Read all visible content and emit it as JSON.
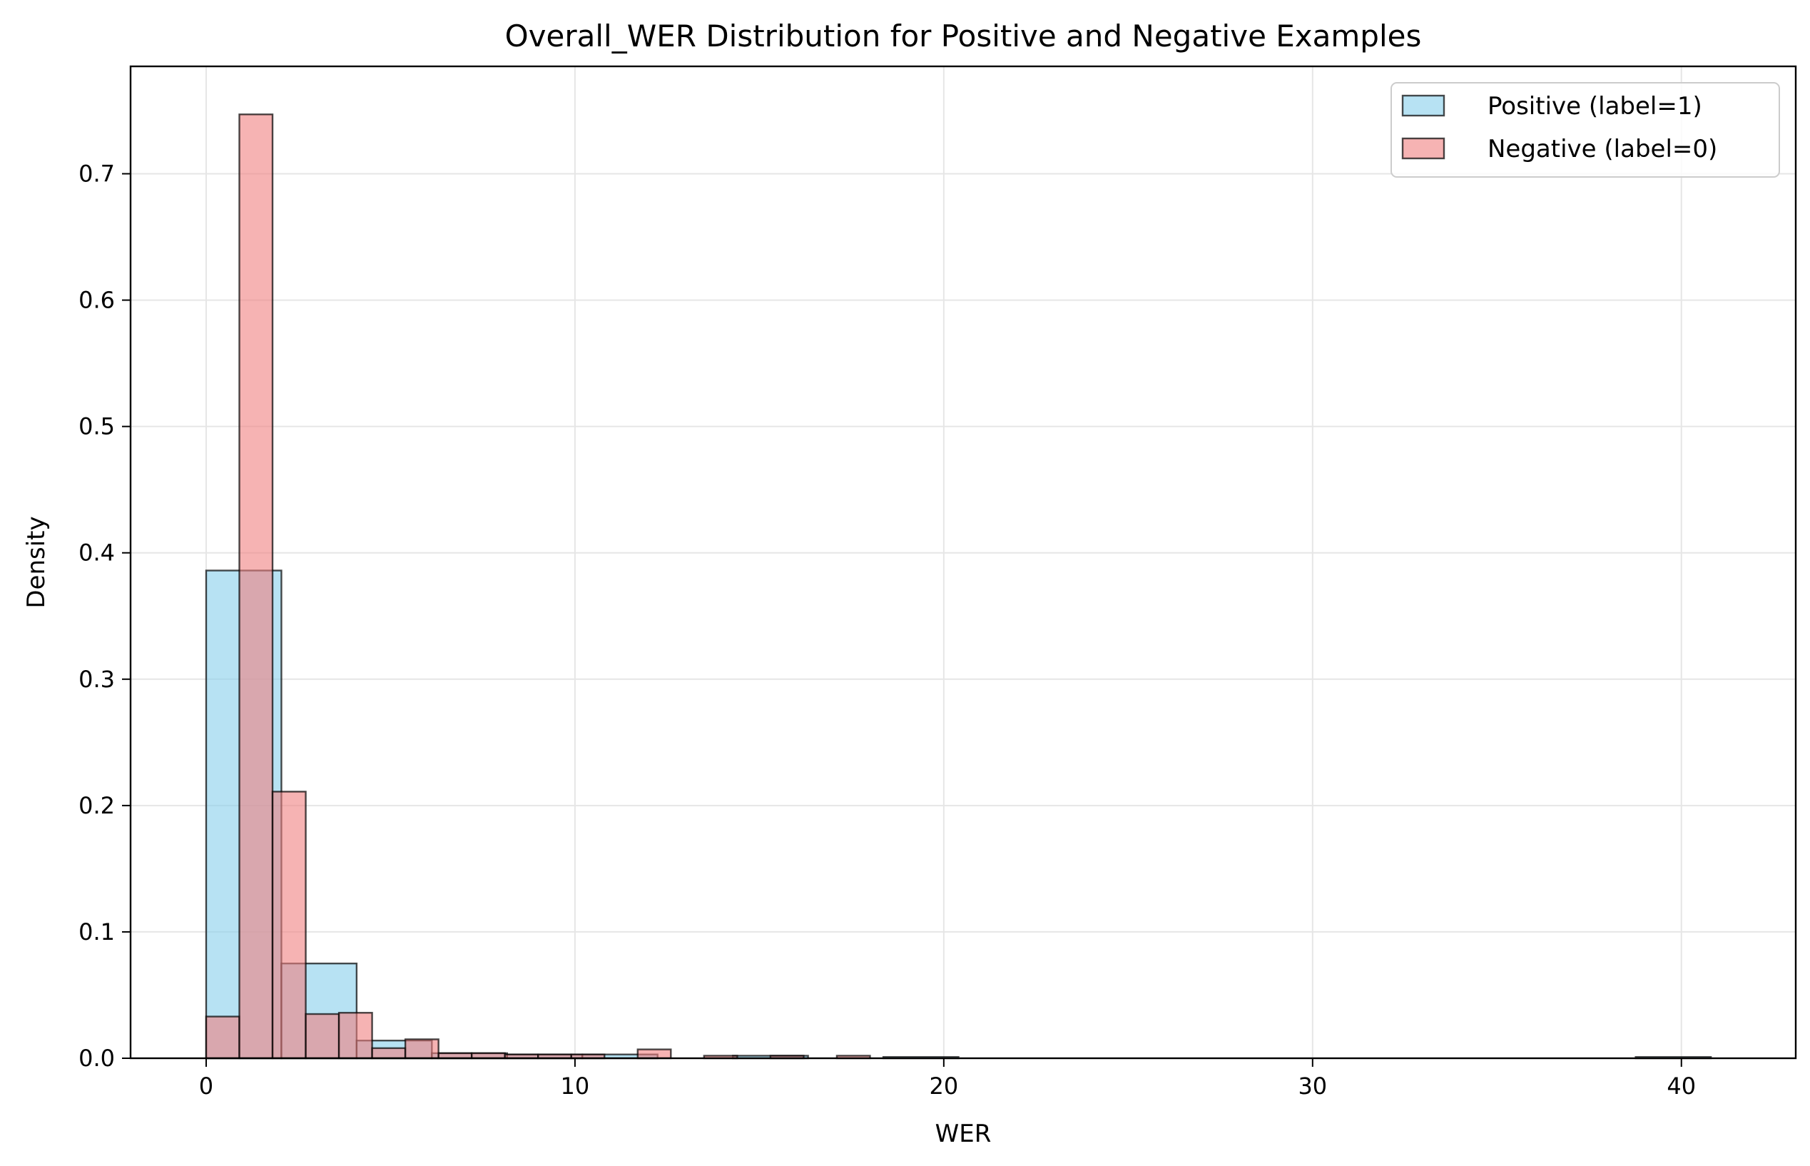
{
  "chart_data": {
    "type": "bar",
    "title": "Overall_WER Distribution for Positive and Negative Examples",
    "xlabel": "WER",
    "ylabel": "Density",
    "xlim": [
      -2.05,
      43.1
    ],
    "ylim": [
      0,
      0.785
    ],
    "xticks": [
      0,
      10,
      20,
      30,
      40
    ],
    "yticks": [
      0.0,
      0.1,
      0.2,
      0.3,
      0.4,
      0.5,
      0.6,
      0.7
    ],
    "grid": true,
    "legend_position": "top-right",
    "series": [
      {
        "name": "Positive (label=1)",
        "color": "#87CEEB",
        "bins": [
          {
            "x0": 0.0,
            "x1": 2.04,
            "value": 0.386
          },
          {
            "x0": 2.04,
            "x1": 4.08,
            "value": 0.075
          },
          {
            "x0": 4.08,
            "x1": 6.12,
            "value": 0.014
          },
          {
            "x0": 6.12,
            "x1": 8.16,
            "value": 0.004
          },
          {
            "x0": 8.16,
            "x1": 10.2,
            "value": 0.003
          },
          {
            "x0": 10.2,
            "x1": 12.24,
            "value": 0.003
          },
          {
            "x0": 12.24,
            "x1": 14.28,
            "value": 0.0
          },
          {
            "x0": 14.28,
            "x1": 16.32,
            "value": 0.002
          },
          {
            "x0": 16.32,
            "x1": 18.36,
            "value": 0.0
          },
          {
            "x0": 18.36,
            "x1": 20.4,
            "value": 0.001
          },
          {
            "x0": 38.76,
            "x1": 40.8,
            "value": 0.001
          }
        ]
      },
      {
        "name": "Negative (label=0)",
        "color": "#F08080",
        "bins": [
          {
            "x0": 0.0,
            "x1": 0.9,
            "value": 0.033
          },
          {
            "x0": 0.9,
            "x1": 1.8,
            "value": 0.747
          },
          {
            "x0": 1.8,
            "x1": 2.7,
            "value": 0.211
          },
          {
            "x0": 2.7,
            "x1": 3.6,
            "value": 0.035
          },
          {
            "x0": 3.6,
            "x1": 4.5,
            "value": 0.036
          },
          {
            "x0": 4.5,
            "x1": 5.4,
            "value": 0.008
          },
          {
            "x0": 5.4,
            "x1": 6.3,
            "value": 0.015
          },
          {
            "x0": 6.3,
            "x1": 7.2,
            "value": 0.004
          },
          {
            "x0": 7.2,
            "x1": 8.1,
            "value": 0.004
          },
          {
            "x0": 8.1,
            "x1": 9.0,
            "value": 0.003
          },
          {
            "x0": 9.0,
            "x1": 9.9,
            "value": 0.003
          },
          {
            "x0": 9.9,
            "x1": 10.8,
            "value": 0.003
          },
          {
            "x0": 11.7,
            "x1": 12.6,
            "value": 0.007
          },
          {
            "x0": 13.5,
            "x1": 14.4,
            "value": 0.002
          },
          {
            "x0": 15.3,
            "x1": 16.2,
            "value": 0.002
          },
          {
            "x0": 17.1,
            "x1": 18.0,
            "value": 0.002
          }
        ]
      }
    ]
  }
}
